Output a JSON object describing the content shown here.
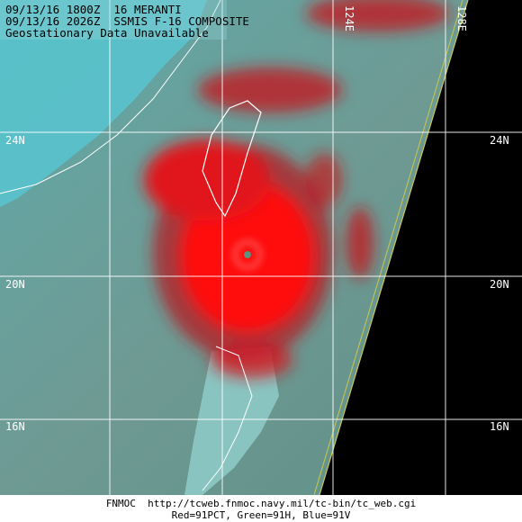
{
  "header": {
    "lines": [
      "09/13/16 1800Z  16 MERANTI",
      "09/13/16 2026Z  SSMIS F-16 COMPOSITE",
      "Geostationary Data Unavailable"
    ]
  },
  "grid": {
    "lat_labels": [
      "24N",
      "20N",
      "16N"
    ],
    "lon_labels": [
      "124E",
      "128E"
    ]
  },
  "footer": {
    "source": "FNMOC  http://tcweb.fnmoc.navy.mil/tc-bin/tc_web.cgi",
    "channels": "Red=91PCT, Green=91H, Blue=91V"
  }
}
